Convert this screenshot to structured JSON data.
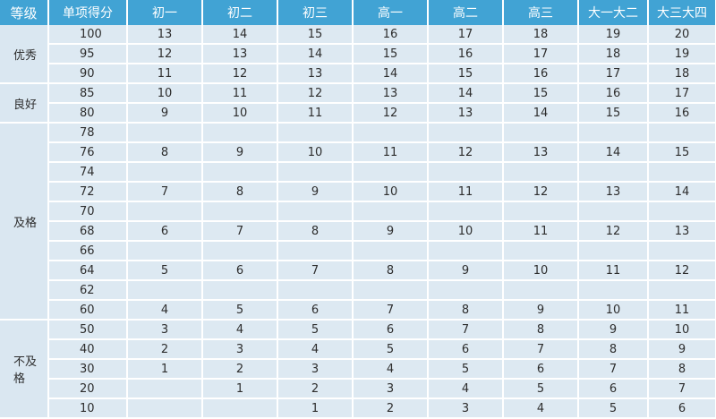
{
  "header": {
    "level": "等级",
    "score": "单项得分",
    "grades": [
      "初一",
      "初二",
      "初三",
      "高一",
      "高二",
      "高三",
      "大一大二",
      "大三大四"
    ]
  },
  "levels": [
    {
      "name": "优秀",
      "rows": [
        {
          "score": "100",
          "values": [
            "13",
            "14",
            "15",
            "16",
            "17",
            "18",
            "19",
            "20"
          ]
        },
        {
          "score": "95",
          "values": [
            "12",
            "13",
            "14",
            "15",
            "16",
            "17",
            "18",
            "19"
          ]
        },
        {
          "score": "90",
          "values": [
            "11",
            "12",
            "13",
            "14",
            "15",
            "16",
            "17",
            "18"
          ]
        }
      ]
    },
    {
      "name": "良好",
      "rows": [
        {
          "score": "85",
          "values": [
            "10",
            "11",
            "12",
            "13",
            "14",
            "15",
            "16",
            "17"
          ]
        },
        {
          "score": "80",
          "values": [
            "9",
            "10",
            "11",
            "12",
            "13",
            "14",
            "15",
            "16"
          ]
        }
      ]
    },
    {
      "name": "及格",
      "rows": [
        {
          "score": "78",
          "values": [
            "",
            "",
            "",
            "",
            "",
            "",
            "",
            ""
          ]
        },
        {
          "score": "76",
          "values": [
            "8",
            "9",
            "10",
            "11",
            "12",
            "13",
            "14",
            "15"
          ]
        },
        {
          "score": "74",
          "values": [
            "",
            "",
            "",
            "",
            "",
            "",
            "",
            ""
          ]
        },
        {
          "score": "72",
          "values": [
            "7",
            "8",
            "9",
            "10",
            "11",
            "12",
            "13",
            "14"
          ]
        },
        {
          "score": "70",
          "values": [
            "",
            "",
            "",
            "",
            "",
            "",
            "",
            ""
          ]
        },
        {
          "score": "68",
          "values": [
            "6",
            "7",
            "8",
            "9",
            "10",
            "11",
            "12",
            "13"
          ]
        },
        {
          "score": "66",
          "values": [
            "",
            "",
            "",
            "",
            "",
            "",
            "",
            ""
          ]
        },
        {
          "score": "64",
          "values": [
            "5",
            "6",
            "7",
            "8",
            "9",
            "10",
            "11",
            "12"
          ]
        },
        {
          "score": "62",
          "values": [
            "",
            "",
            "",
            "",
            "",
            "",
            "",
            ""
          ]
        },
        {
          "score": "60",
          "values": [
            "4",
            "5",
            "6",
            "7",
            "8",
            "9",
            "10",
            "11"
          ]
        }
      ]
    },
    {
      "name": "不及格",
      "rows": [
        {
          "score": "50",
          "values": [
            "3",
            "4",
            "5",
            "6",
            "7",
            "8",
            "9",
            "10"
          ]
        },
        {
          "score": "40",
          "values": [
            "2",
            "3",
            "4",
            "5",
            "6",
            "7",
            "8",
            "9"
          ]
        },
        {
          "score": "30",
          "values": [
            "1",
            "2",
            "3",
            "4",
            "5",
            "6",
            "7",
            "8"
          ]
        },
        {
          "score": "20",
          "values": [
            "",
            "1",
            "2",
            "3",
            "4",
            "5",
            "6",
            "7"
          ]
        },
        {
          "score": "10",
          "values": [
            "",
            "",
            "1",
            "2",
            "3",
            "4",
            "5",
            "6"
          ]
        }
      ]
    }
  ],
  "colors": {
    "header_bg": "#41a3d4",
    "header_text": "#ffffff",
    "cell_bg": "#dde9f2",
    "text": "#2d2d2d"
  }
}
